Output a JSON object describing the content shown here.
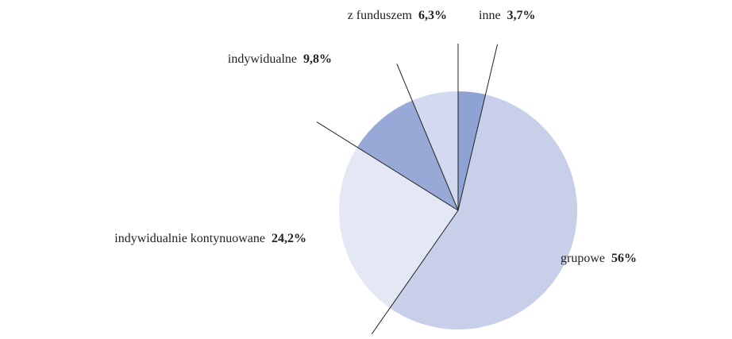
{
  "chart_data": {
    "type": "pie",
    "categories": [
      "inne",
      "grupowe",
      "indywidualnie kontynuowane",
      "indywidualne",
      "z funduszem"
    ],
    "values": [
      3.7,
      56,
      24.2,
      9.8,
      6.3
    ],
    "value_labels": [
      "3,7%",
      "56%",
      "24,2%",
      "9,8%",
      "6,3%"
    ],
    "colors": [
      "#8ea2d3",
      "#c7cfe9",
      "#e4e7f4",
      "#98a9d7",
      "#d3d9ef"
    ]
  }
}
